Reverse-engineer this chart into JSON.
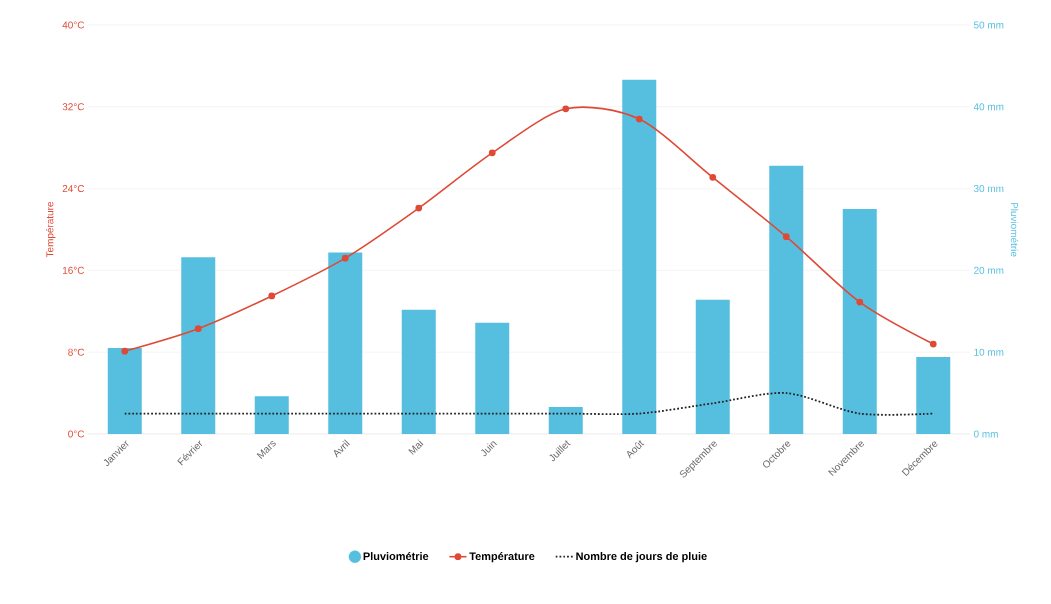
{
  "chart_data": {
    "type": "bar",
    "categories": [
      "Janvier",
      "Février",
      "Mars",
      "Avril",
      "Mai",
      "Juin",
      "Juillet",
      "Août",
      "Septembre",
      "Octobre",
      "Novembre",
      "Décembre"
    ],
    "ylabel": "Température",
    "y2label": "Pluviométrie",
    "ylim": [
      0,
      40
    ],
    "yticks": [
      {
        "value": 0,
        "label": "0°C"
      },
      {
        "value": 8,
        "label": "8°C"
      },
      {
        "value": 16,
        "label": "16°C"
      },
      {
        "value": 24,
        "label": "24°C"
      },
      {
        "value": 32,
        "label": "32°C"
      },
      {
        "value": 40,
        "label": "40°C"
      }
    ],
    "y2lim": [
      0,
      50
    ],
    "y2ticks": [
      {
        "value": 0,
        "label": "0 mm"
      },
      {
        "value": 10,
        "label": "10 mm"
      },
      {
        "value": 20,
        "label": "20 mm"
      },
      {
        "value": 30,
        "label": "30 mm"
      },
      {
        "value": 40,
        "label": "40 mm"
      },
      {
        "value": 50,
        "label": "50 mm"
      }
    ],
    "grid": "y",
    "legend": "bottom",
    "series": [
      {
        "name": "Pluviométrie",
        "axis": "y2",
        "color": "#56bfdf",
        "values": [
          10.5,
          21.6,
          4.6,
          22.2,
          15.2,
          13.6,
          3.3,
          43.3,
          16.4,
          32.8,
          27.5,
          9.4
        ]
      },
      {
        "name": "Température",
        "type": "line",
        "axis": "y",
        "color": "#df4a36",
        "marker": "circle",
        "line_style": "solid",
        "values": [
          8.1,
          10.3,
          13.5,
          17.2,
          22.1,
          27.5,
          31.8,
          30.8,
          25.1,
          19.3,
          12.9,
          8.8
        ]
      },
      {
        "name": "Nombre de jours de pluie",
        "type": "line",
        "axis": "y",
        "color": "#222222",
        "marker": "none",
        "line_style": "dotted",
        "values": [
          2,
          2,
          2,
          2,
          2,
          2,
          2,
          2,
          3,
          4,
          2,
          2
        ]
      }
    ]
  }
}
